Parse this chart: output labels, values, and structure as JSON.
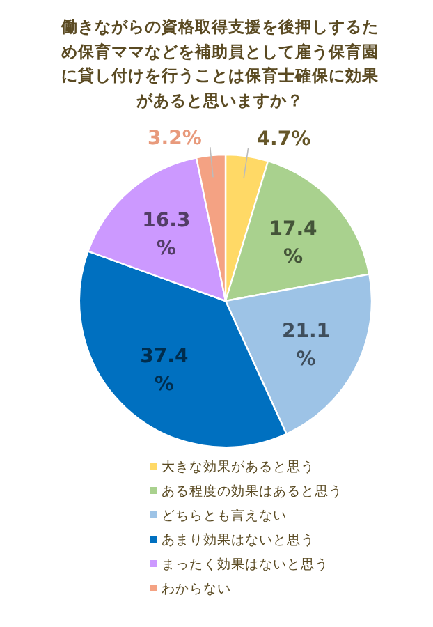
{
  "chart_data": {
    "type": "pie",
    "title": "働きながらの資格取得支援を後押しするため保育ママなどを補助員として雇う保育園に貸し付けを行うことは保育士確保に効果があると思いますか？",
    "categories": [
      "大きな効果があると思う",
      "ある程度の効果はあると思う",
      "どちらとも言えない",
      "あまり効果はないと思う",
      "まったく効果はないと思う",
      "わからない"
    ],
    "values": [
      4.7,
      17.4,
      21.1,
      37.4,
      16.3,
      3.2
    ],
    "colors": [
      "#ffd966",
      "#a9d18e",
      "#9dc3e6",
      "#0070c0",
      "#cc99ff",
      "#f4a283"
    ],
    "value_labels": [
      "4.7%",
      "17.4%",
      "21.1%",
      "37.4%",
      "16.3%",
      "3.2%"
    ],
    "legend": "bottom"
  }
}
